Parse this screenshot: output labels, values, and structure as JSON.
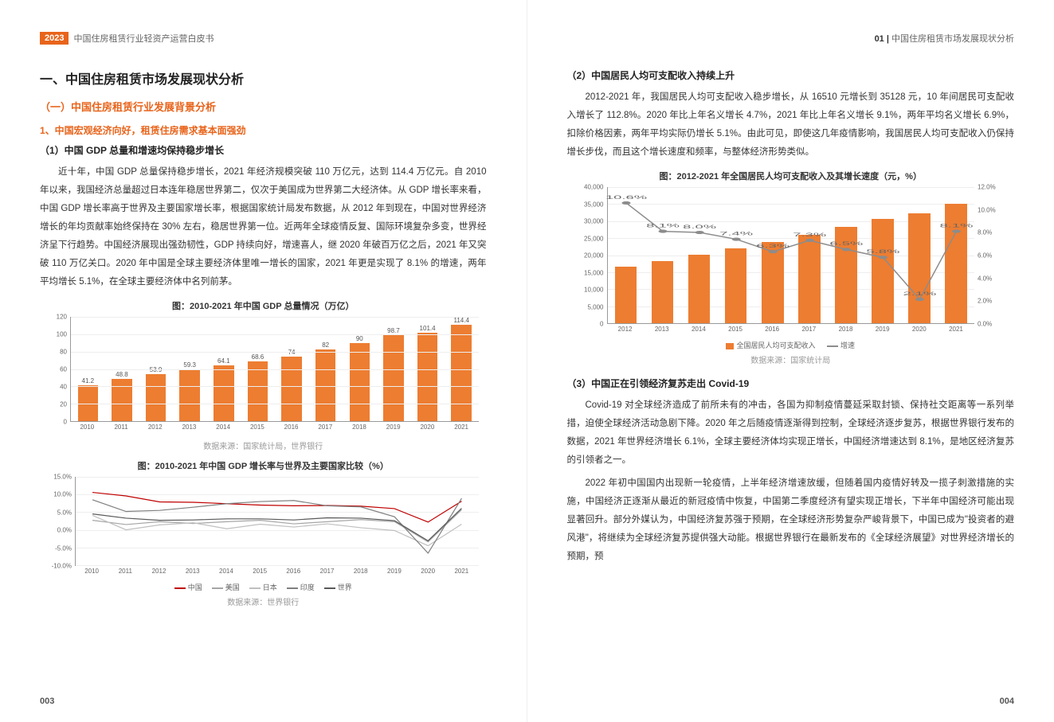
{
  "header": {
    "year": "2023",
    "doc_title": "中国住房租赁行业轻资产运营白皮书",
    "section_right": "01 |",
    "section_right_text": "中国住房租赁市场发展现状分析"
  },
  "page_left_num": "003",
  "page_right_num": "004",
  "colors": {
    "accent": "#e8641b",
    "bar": "#ed7d31",
    "axis": "#999999",
    "grid": "#eeeeee",
    "line_china": "#c00000",
    "line_us": "#a6a6a6",
    "line_japan": "#bfbfbf",
    "line_india": "#7f7f7f",
    "line_world": "#595959",
    "line_growth": "#8c8c8c"
  },
  "left": {
    "h1": "一、中国住房租赁市场发展现状分析",
    "h2": "（一）中国住房租赁行业发展背景分析",
    "h3": "1、中国宏观经济向好，租赁住房需求基本面强劲",
    "h4_1": "（1）中国 GDP 总量和增速均保持稳步增长",
    "p1": "近十年，中国 GDP 总量保持稳步增长，2021 年经济规模突破 110 万亿元，达到 114.4 万亿元。自 2010 年以来，我国经济总量超过日本连年稳居世界第二，仅次于美国成为世界第二大经济体。从 GDP 增长率来看，中国 GDP 增长率高于世界及主要国家增长率，根据国家统计局发布数据，从 2012 年到现在，中国对世界经济增长的年均贡献率始终保持在 30% 左右，稳居世界第一位。近两年全球疫情反复、国际环境复杂多变，世界经济呈下行趋势。中国经济展现出强劲韧性，GDP 持续向好，增速喜人，继 2020 年破百万亿之后，2021 年又突破 110 万亿关口。2020 年中国是全球主要经济体里唯一增长的国家，2021 年更是实现了 8.1% 的增速，两年平均增长 5.1%，在全球主要经济体中名列前茅。",
    "chart1": {
      "type": "bar",
      "title": "图：2010-2021 年中国 GDP 总量情况（万亿）",
      "source": "数据来源：国家统计局，世界银行",
      "categories": [
        "2010",
        "2011",
        "2012",
        "2013",
        "2014",
        "2015",
        "2016",
        "2017",
        "2018",
        "2019",
        "2020",
        "2021"
      ],
      "values": [
        41.2,
        48.8,
        53.9,
        59.3,
        64.1,
        68.6,
        74,
        82,
        90,
        98.7,
        101.4,
        114.4
      ],
      "ymin": 0,
      "ymax": 120,
      "ystep": 20,
      "bar_color": "#ed7d31",
      "label_fontsize": 8
    },
    "chart2": {
      "type": "line",
      "title": "图：2010-2021 年中国 GDP 增长率与世界及主要国家比较（%）",
      "source": "数据来源：世界银行",
      "categories": [
        "2010",
        "2011",
        "2012",
        "2013",
        "2014",
        "2015",
        "2016",
        "2017",
        "2018",
        "2019",
        "2020",
        "2021"
      ],
      "ymin": -10.0,
      "ymax": 15.0,
      "ystep": 5.0,
      "series": [
        {
          "name": "中国",
          "color": "#c00000",
          "values": [
            10.6,
            9.6,
            7.9,
            7.8,
            7.4,
            7.0,
            6.8,
            6.9,
            6.7,
            6.0,
            2.2,
            8.1
          ]
        },
        {
          "name": "美国",
          "color": "#a6a6a6",
          "values": [
            2.7,
            1.5,
            2.3,
            1.8,
            2.3,
            2.7,
            1.7,
            2.3,
            2.9,
            2.3,
            -3.4,
            5.7
          ]
        },
        {
          "name": "日本",
          "color": "#bfbfbf",
          "values": [
            4.1,
            0.0,
            1.4,
            2.0,
            0.3,
            1.6,
            0.8,
            1.7,
            0.6,
            -0.2,
            -4.5,
            1.6
          ]
        },
        {
          "name": "印度",
          "color": "#7f7f7f",
          "values": [
            8.5,
            5.2,
            5.5,
            6.4,
            7.4,
            8.0,
            8.3,
            6.8,
            6.5,
            3.7,
            -6.6,
            8.9
          ]
        },
        {
          "name": "世界",
          "color": "#595959",
          "values": [
            4.5,
            3.3,
            2.7,
            2.8,
            3.1,
            3.1,
            2.8,
            3.4,
            3.3,
            2.6,
            -3.1,
            6.1
          ]
        }
      ]
    }
  },
  "right": {
    "h4_2": "（2）中国居民人均可支配收入持续上升",
    "p2": "2012-2021 年，我国居民人均可支配收入稳步增长，从 16510 元增长到 35128 元，10 年间居民可支配收入增长了 112.8%。2020 年比上年名义增长 4.7%，2021 年比上年名义增长 9.1%，两年平均名义增长 6.9%，扣除价格因素，两年平均实际仍增长 5.1%。由此可见，即使这几年疫情影响，我国居民人均可支配收入仍保持增长步伐，而且这个增长速度和频率，与整体经济形势类似。",
    "chart3": {
      "type": "combo",
      "title": "图：2012-2021 年全国居民人均可支配收入及其增长速度（元，%）",
      "source": "数据来源：国家统计局",
      "categories": [
        "2012",
        "2013",
        "2014",
        "2015",
        "2016",
        "2017",
        "2018",
        "2019",
        "2020",
        "2021"
      ],
      "bar_values": [
        16510,
        18311,
        20167,
        21966,
        23821,
        25974,
        28228,
        30733,
        32189,
        35128
      ],
      "line_values": [
        10.6,
        8.1,
        8.0,
        7.4,
        6.3,
        7.3,
        6.5,
        5.8,
        2.1,
        8.1
      ],
      "y_left_min": 0,
      "y_left_max": 40000,
      "y_left_step": 5000,
      "y_right_min": 0.0,
      "y_right_max": 12.0,
      "y_right_step": 2.0,
      "bar_color": "#ed7d31",
      "line_color": "#8c8c8c",
      "legend_bar": "全国居民人均可支配收入",
      "legend_line": "增速"
    },
    "h4_3": "（3）中国正在引领经济复苏走出 Covid-19",
    "p3": "Covid-19 对全球经济造成了前所未有的冲击，各国为抑制疫情蔓延采取封锁、保持社交距离等一系列举措，迫使全球经济活动急剧下降。2020 年之后随疫情逐渐得到控制，全球经济逐步复苏，根据世界银行发布的数据，2021 年世界经济增长 6.1%，全球主要经济体均实现正增长，中国经济增速达到 8.1%，是地区经济复苏的引领者之一。",
    "p4": "2022 年初中国国内出现新一轮疫情，上半年经济增速放缓，但随着国内疫情好转及一揽子刺激措施的实施，中国经济正逐渐从最近的新冠疫情中恢复，中国第二季度经济有望实现正增长，下半年中国经济可能出现显著回升。部分外媒认为，中国经济复苏强于预期，在全球经济形势复杂严峻背景下，中国已成为\"投资者的避风港\"，将继续为全球经济复苏提供强大动能。根据世界银行在最新发布的《全球经济展望》对世界经济增长的预期，预"
  }
}
